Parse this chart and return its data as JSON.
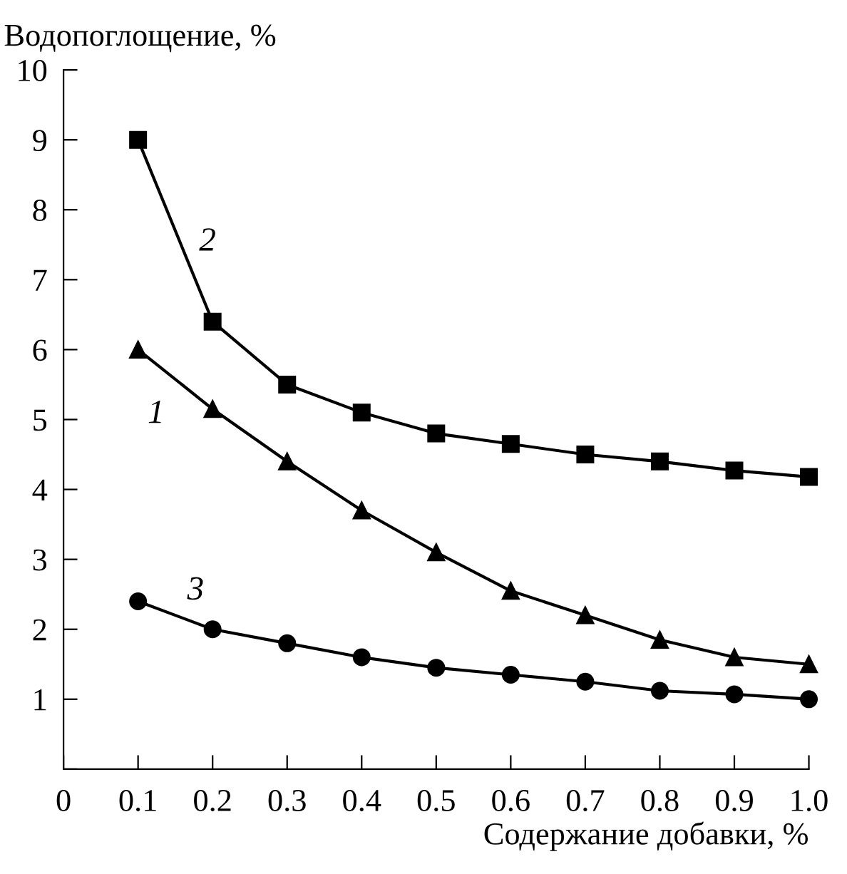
{
  "chart_data": {
    "type": "line",
    "xlabel": "Содержание добавки, %",
    "ylabel": "Водопоглощение, %",
    "x": [
      0.1,
      0.2,
      0.3,
      0.4,
      0.5,
      0.6,
      0.7,
      0.8,
      0.9,
      1.0
    ],
    "series": [
      {
        "name": "1",
        "color": "#000000",
        "marker": "triangle",
        "values": [
          6.0,
          5.15,
          4.4,
          3.7,
          3.1,
          2.55,
          2.2,
          1.85,
          1.6,
          1.5
        ]
      },
      {
        "name": "2",
        "color": "#000000",
        "marker": "square",
        "values": [
          9.0,
          6.4,
          5.5,
          5.1,
          4.8,
          4.65,
          4.5,
          4.4,
          4.27,
          4.18
        ]
      },
      {
        "name": "3",
        "color": "#000000",
        "marker": "circle",
        "values": [
          2.4,
          2.0,
          1.8,
          1.6,
          1.45,
          1.35,
          1.25,
          1.12,
          1.07,
          1.0
        ]
      }
    ],
    "xlim": [
      0,
      1.0
    ],
    "ylim": [
      0,
      10
    ],
    "xticks": [
      0,
      0.1,
      0.2,
      0.3,
      0.4,
      0.5,
      0.6,
      0.7,
      0.8,
      0.9,
      {
        "value": 1.0,
        "label": "1.0"
      }
    ],
    "yticks": [
      {
        "value": 0,
        "label": null
      },
      1,
      2,
      3,
      4,
      5,
      6,
      7,
      8,
      9,
      10
    ],
    "grid": false,
    "legend": false
  }
}
